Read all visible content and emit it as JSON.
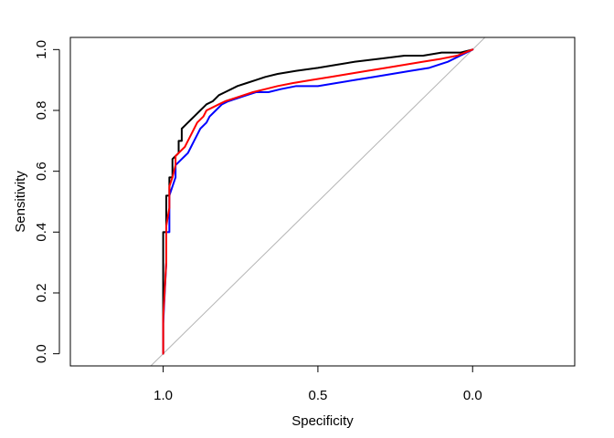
{
  "chart_data": {
    "type": "line",
    "title": "",
    "xlabel": "Specificity",
    "ylabel": "Sensitivity",
    "xlim": [
      1.3,
      -0.33
    ],
    "ylim": [
      -0.04,
      1.04
    ],
    "x_reversed": true,
    "x_ticks": [
      1.0,
      0.5,
      0.0
    ],
    "x_tick_labels": [
      "1.0",
      "0.5",
      "0.0"
    ],
    "y_ticks": [
      0.0,
      0.2,
      0.4,
      0.6,
      0.8,
      1.0
    ],
    "y_tick_labels": [
      "0.0",
      "0.2",
      "0.4",
      "0.6",
      "0.8",
      "1.0"
    ],
    "grid": false,
    "legend": "none",
    "reference_line": {
      "points": [
        [
          1.05,
          -0.05
        ],
        [
          -0.05,
          1.05
        ]
      ],
      "color": "#b3b3b3"
    },
    "series": [
      {
        "color": "#000000",
        "points": [
          [
            1.0,
            0.0
          ],
          [
            1.0,
            0.18
          ],
          [
            1.0,
            0.3
          ],
          [
            1.0,
            0.4
          ],
          [
            0.99,
            0.4
          ],
          [
            0.99,
            0.52
          ],
          [
            0.98,
            0.52
          ],
          [
            0.98,
            0.58
          ],
          [
            0.97,
            0.58
          ],
          [
            0.97,
            0.64
          ],
          [
            0.96,
            0.65
          ],
          [
            0.95,
            0.66
          ],
          [
            0.95,
            0.7
          ],
          [
            0.94,
            0.7
          ],
          [
            0.94,
            0.74
          ],
          [
            0.93,
            0.75
          ],
          [
            0.92,
            0.76
          ],
          [
            0.91,
            0.77
          ],
          [
            0.9,
            0.78
          ],
          [
            0.89,
            0.79
          ],
          [
            0.88,
            0.8
          ],
          [
            0.87,
            0.81
          ],
          [
            0.86,
            0.82
          ],
          [
            0.84,
            0.83
          ],
          [
            0.83,
            0.84
          ],
          [
            0.82,
            0.85
          ],
          [
            0.8,
            0.86
          ],
          [
            0.78,
            0.87
          ],
          [
            0.76,
            0.88
          ],
          [
            0.73,
            0.89
          ],
          [
            0.7,
            0.9
          ],
          [
            0.67,
            0.91
          ],
          [
            0.63,
            0.92
          ],
          [
            0.57,
            0.93
          ],
          [
            0.5,
            0.94
          ],
          [
            0.44,
            0.95
          ],
          [
            0.38,
            0.96
          ],
          [
            0.3,
            0.97
          ],
          [
            0.22,
            0.98
          ],
          [
            0.16,
            0.98
          ],
          [
            0.1,
            0.99
          ],
          [
            0.04,
            0.99
          ],
          [
            0.0,
            1.0
          ]
        ]
      },
      {
        "color": "#0000ff",
        "points": [
          [
            1.0,
            0.0
          ],
          [
            1.0,
            0.1
          ],
          [
            0.99,
            0.3
          ],
          [
            0.99,
            0.4
          ],
          [
            0.98,
            0.4
          ],
          [
            0.98,
            0.52
          ],
          [
            0.97,
            0.55
          ],
          [
            0.96,
            0.58
          ],
          [
            0.96,
            0.62
          ],
          [
            0.95,
            0.63
          ],
          [
            0.94,
            0.64
          ],
          [
            0.93,
            0.65
          ],
          [
            0.92,
            0.66
          ],
          [
            0.91,
            0.68
          ],
          [
            0.9,
            0.7
          ],
          [
            0.89,
            0.72
          ],
          [
            0.88,
            0.74
          ],
          [
            0.86,
            0.76
          ],
          [
            0.85,
            0.78
          ],
          [
            0.83,
            0.8
          ],
          [
            0.81,
            0.82
          ],
          [
            0.79,
            0.83
          ],
          [
            0.76,
            0.84
          ],
          [
            0.73,
            0.85
          ],
          [
            0.7,
            0.86
          ],
          [
            0.66,
            0.86
          ],
          [
            0.62,
            0.87
          ],
          [
            0.57,
            0.88
          ],
          [
            0.5,
            0.88
          ],
          [
            0.44,
            0.89
          ],
          [
            0.38,
            0.9
          ],
          [
            0.32,
            0.91
          ],
          [
            0.26,
            0.92
          ],
          [
            0.2,
            0.93
          ],
          [
            0.14,
            0.94
          ],
          [
            0.08,
            0.96
          ],
          [
            0.04,
            0.98
          ],
          [
            0.0,
            1.0
          ]
        ]
      },
      {
        "color": "#ff0000",
        "points": [
          [
            1.0,
            0.0
          ],
          [
            1.0,
            0.12
          ],
          [
            0.99,
            0.3
          ],
          [
            0.99,
            0.42
          ],
          [
            0.98,
            0.48
          ],
          [
            0.98,
            0.55
          ],
          [
            0.97,
            0.58
          ],
          [
            0.96,
            0.62
          ],
          [
            0.96,
            0.65
          ],
          [
            0.95,
            0.66
          ],
          [
            0.94,
            0.67
          ],
          [
            0.93,
            0.68
          ],
          [
            0.92,
            0.7
          ],
          [
            0.91,
            0.72
          ],
          [
            0.9,
            0.74
          ],
          [
            0.89,
            0.76
          ],
          [
            0.87,
            0.78
          ],
          [
            0.86,
            0.8
          ],
          [
            0.84,
            0.81
          ],
          [
            0.82,
            0.82
          ],
          [
            0.8,
            0.83
          ],
          [
            0.77,
            0.84
          ],
          [
            0.74,
            0.85
          ],
          [
            0.71,
            0.86
          ],
          [
            0.67,
            0.87
          ],
          [
            0.63,
            0.88
          ],
          [
            0.58,
            0.89
          ],
          [
            0.52,
            0.9
          ],
          [
            0.46,
            0.91
          ],
          [
            0.4,
            0.92
          ],
          [
            0.34,
            0.93
          ],
          [
            0.28,
            0.94
          ],
          [
            0.22,
            0.95
          ],
          [
            0.16,
            0.96
          ],
          [
            0.1,
            0.97
          ],
          [
            0.05,
            0.98
          ],
          [
            0.0,
            1.0
          ]
        ]
      }
    ]
  }
}
